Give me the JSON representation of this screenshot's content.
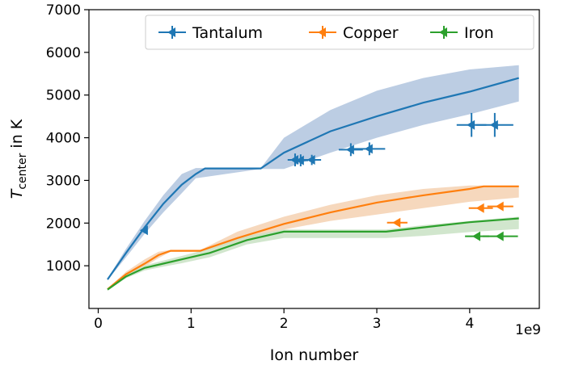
{
  "chart_data": {
    "type": "line",
    "xlabel": "Ion number",
    "ylabel_main": "T",
    "ylabel_sub": "center",
    "ylabel_suffix": " in K",
    "x_offset_text": "1e9",
    "xlim": [
      -0.1,
      4.75
    ],
    "ylim": [
      0,
      7000
    ],
    "xticks": [
      0,
      1,
      2,
      3,
      4
    ],
    "xtick_labels": [
      "0",
      "1",
      "2",
      "3",
      "4"
    ],
    "yticks": [
      1000,
      2000,
      3000,
      4000,
      5000,
      6000,
      7000
    ],
    "ytick_labels": [
      "1000",
      "2000",
      "3000",
      "4000",
      "5000",
      "6000",
      "7000"
    ],
    "legend_position": "top-right",
    "series": [
      {
        "name": "Tantalum",
        "color": "#1f77b4",
        "band_color": "#b0c4de",
        "line": [
          [
            0.1,
            680
          ],
          [
            0.3,
            1300
          ],
          [
            0.5,
            1900
          ],
          [
            0.7,
            2450
          ],
          [
            0.9,
            2900
          ],
          [
            1.05,
            3150
          ],
          [
            1.15,
            3280
          ],
          [
            1.75,
            3280
          ],
          [
            2.0,
            3650
          ],
          [
            2.5,
            4150
          ],
          [
            3.0,
            4500
          ],
          [
            3.5,
            4820
          ],
          [
            4.0,
            5080
          ],
          [
            4.53,
            5400
          ]
        ],
        "band_upper": [
          [
            0.1,
            700
          ],
          [
            0.3,
            1400
          ],
          [
            0.5,
            2050
          ],
          [
            0.7,
            2650
          ],
          [
            0.9,
            3150
          ],
          [
            1.05,
            3290
          ],
          [
            1.75,
            3290
          ],
          [
            2.0,
            4000
          ],
          [
            2.5,
            4650
          ],
          [
            3.0,
            5100
          ],
          [
            3.5,
            5400
          ],
          [
            4.0,
            5600
          ],
          [
            4.53,
            5700
          ]
        ],
        "band_lower": [
          [
            4.53,
            4850
          ],
          [
            4.0,
            4550
          ],
          [
            3.5,
            4300
          ],
          [
            3.0,
            4000
          ],
          [
            2.5,
            3650
          ],
          [
            2.0,
            3270
          ],
          [
            1.75,
            3270
          ],
          [
            1.05,
            3050
          ],
          [
            0.9,
            2700
          ],
          [
            0.7,
            2250
          ],
          [
            0.5,
            1750
          ],
          [
            0.3,
            1200
          ],
          [
            0.1,
            660
          ]
        ],
        "points": [
          {
            "x": 0.5,
            "y": 1830,
            "xerr": 0.02,
            "yerr": 60
          },
          {
            "x": 2.12,
            "y": 3480,
            "xerr": 0.08,
            "yerr": 150
          },
          {
            "x": 2.18,
            "y": 3470,
            "xerr": 0.08,
            "yerr": 140
          },
          {
            "x": 2.3,
            "y": 3480,
            "xerr": 0.1,
            "yerr": 120
          },
          {
            "x": 2.72,
            "y": 3720,
            "xerr": 0.13,
            "yerr": 150
          },
          {
            "x": 2.92,
            "y": 3740,
            "xerr": 0.17,
            "yerr": 150
          },
          {
            "x": 4.02,
            "y": 4300,
            "xerr": 0.16,
            "yerr": 280
          },
          {
            "x": 4.27,
            "y": 4300,
            "xerr": 0.2,
            "yerr": 280
          }
        ]
      },
      {
        "name": "Copper",
        "color": "#ff7f0e",
        "band_color": "#f5d1b2",
        "line": [
          [
            0.1,
            450
          ],
          [
            0.3,
            800
          ],
          [
            0.5,
            1050
          ],
          [
            0.65,
            1250
          ],
          [
            0.78,
            1350
          ],
          [
            1.1,
            1350
          ],
          [
            1.5,
            1650
          ],
          [
            2.0,
            1980
          ],
          [
            2.5,
            2250
          ],
          [
            3.0,
            2480
          ],
          [
            3.5,
            2650
          ],
          [
            4.0,
            2800
          ],
          [
            4.15,
            2860
          ],
          [
            4.53,
            2860
          ]
        ],
        "band_upper": [
          [
            0.1,
            470
          ],
          [
            0.3,
            860
          ],
          [
            0.5,
            1150
          ],
          [
            0.65,
            1330
          ],
          [
            0.78,
            1370
          ],
          [
            1.1,
            1370
          ],
          [
            1.5,
            1800
          ],
          [
            2.0,
            2150
          ],
          [
            2.5,
            2430
          ],
          [
            3.0,
            2650
          ],
          [
            3.5,
            2800
          ],
          [
            4.0,
            2880
          ],
          [
            4.53,
            2880
          ]
        ],
        "band_lower": [
          [
            4.53,
            2600
          ],
          [
            4.0,
            2500
          ],
          [
            3.5,
            2350
          ],
          [
            3.0,
            2200
          ],
          [
            2.5,
            2050
          ],
          [
            2.0,
            1850
          ],
          [
            1.5,
            1550
          ],
          [
            1.1,
            1330
          ],
          [
            0.78,
            1330
          ],
          [
            0.65,
            1180
          ],
          [
            0.5,
            980
          ],
          [
            0.3,
            750
          ],
          [
            0.1,
            430
          ]
        ],
        "points": [
          {
            "x": 3.22,
            "y": 2010,
            "xerr": 0.11,
            "yerr": 60
          },
          {
            "x": 4.12,
            "y": 2350,
            "xerr": 0.13,
            "yerr": 60
          },
          {
            "x": 4.33,
            "y": 2390,
            "xerr": 0.14,
            "yerr": 60
          }
        ]
      },
      {
        "name": "Iron",
        "color": "#2ca02c",
        "band_color": "#c9e2c4",
        "line": [
          [
            0.1,
            440
          ],
          [
            0.3,
            750
          ],
          [
            0.5,
            950
          ],
          [
            0.7,
            1050
          ],
          [
            0.9,
            1150
          ],
          [
            1.2,
            1300
          ],
          [
            1.6,
            1600
          ],
          [
            2.0,
            1800
          ],
          [
            3.1,
            1800
          ],
          [
            3.5,
            1900
          ],
          [
            4.0,
            2020
          ],
          [
            4.53,
            2110
          ]
        ],
        "band_upper": [
          [
            0.1,
            460
          ],
          [
            0.3,
            800
          ],
          [
            0.5,
            1010
          ],
          [
            0.7,
            1120
          ],
          [
            0.9,
            1230
          ],
          [
            1.2,
            1400
          ],
          [
            1.6,
            1700
          ],
          [
            2.0,
            1850
          ],
          [
            3.1,
            1850
          ],
          [
            3.5,
            1950
          ],
          [
            4.0,
            2050
          ],
          [
            4.53,
            2150
          ]
        ],
        "band_lower": [
          [
            4.53,
            1860
          ],
          [
            4.0,
            1790
          ],
          [
            3.5,
            1700
          ],
          [
            3.1,
            1650
          ],
          [
            2.0,
            1650
          ],
          [
            1.6,
            1500
          ],
          [
            1.2,
            1200
          ],
          [
            0.9,
            1060
          ],
          [
            0.7,
            980
          ],
          [
            0.5,
            890
          ],
          [
            0.3,
            710
          ],
          [
            0.1,
            420
          ]
        ],
        "points": [
          {
            "x": 4.08,
            "y": 1690,
            "xerr": 0.13,
            "yerr": 50
          },
          {
            "x": 4.33,
            "y": 1690,
            "xerr": 0.19,
            "yerr": 50
          }
        ]
      }
    ]
  }
}
